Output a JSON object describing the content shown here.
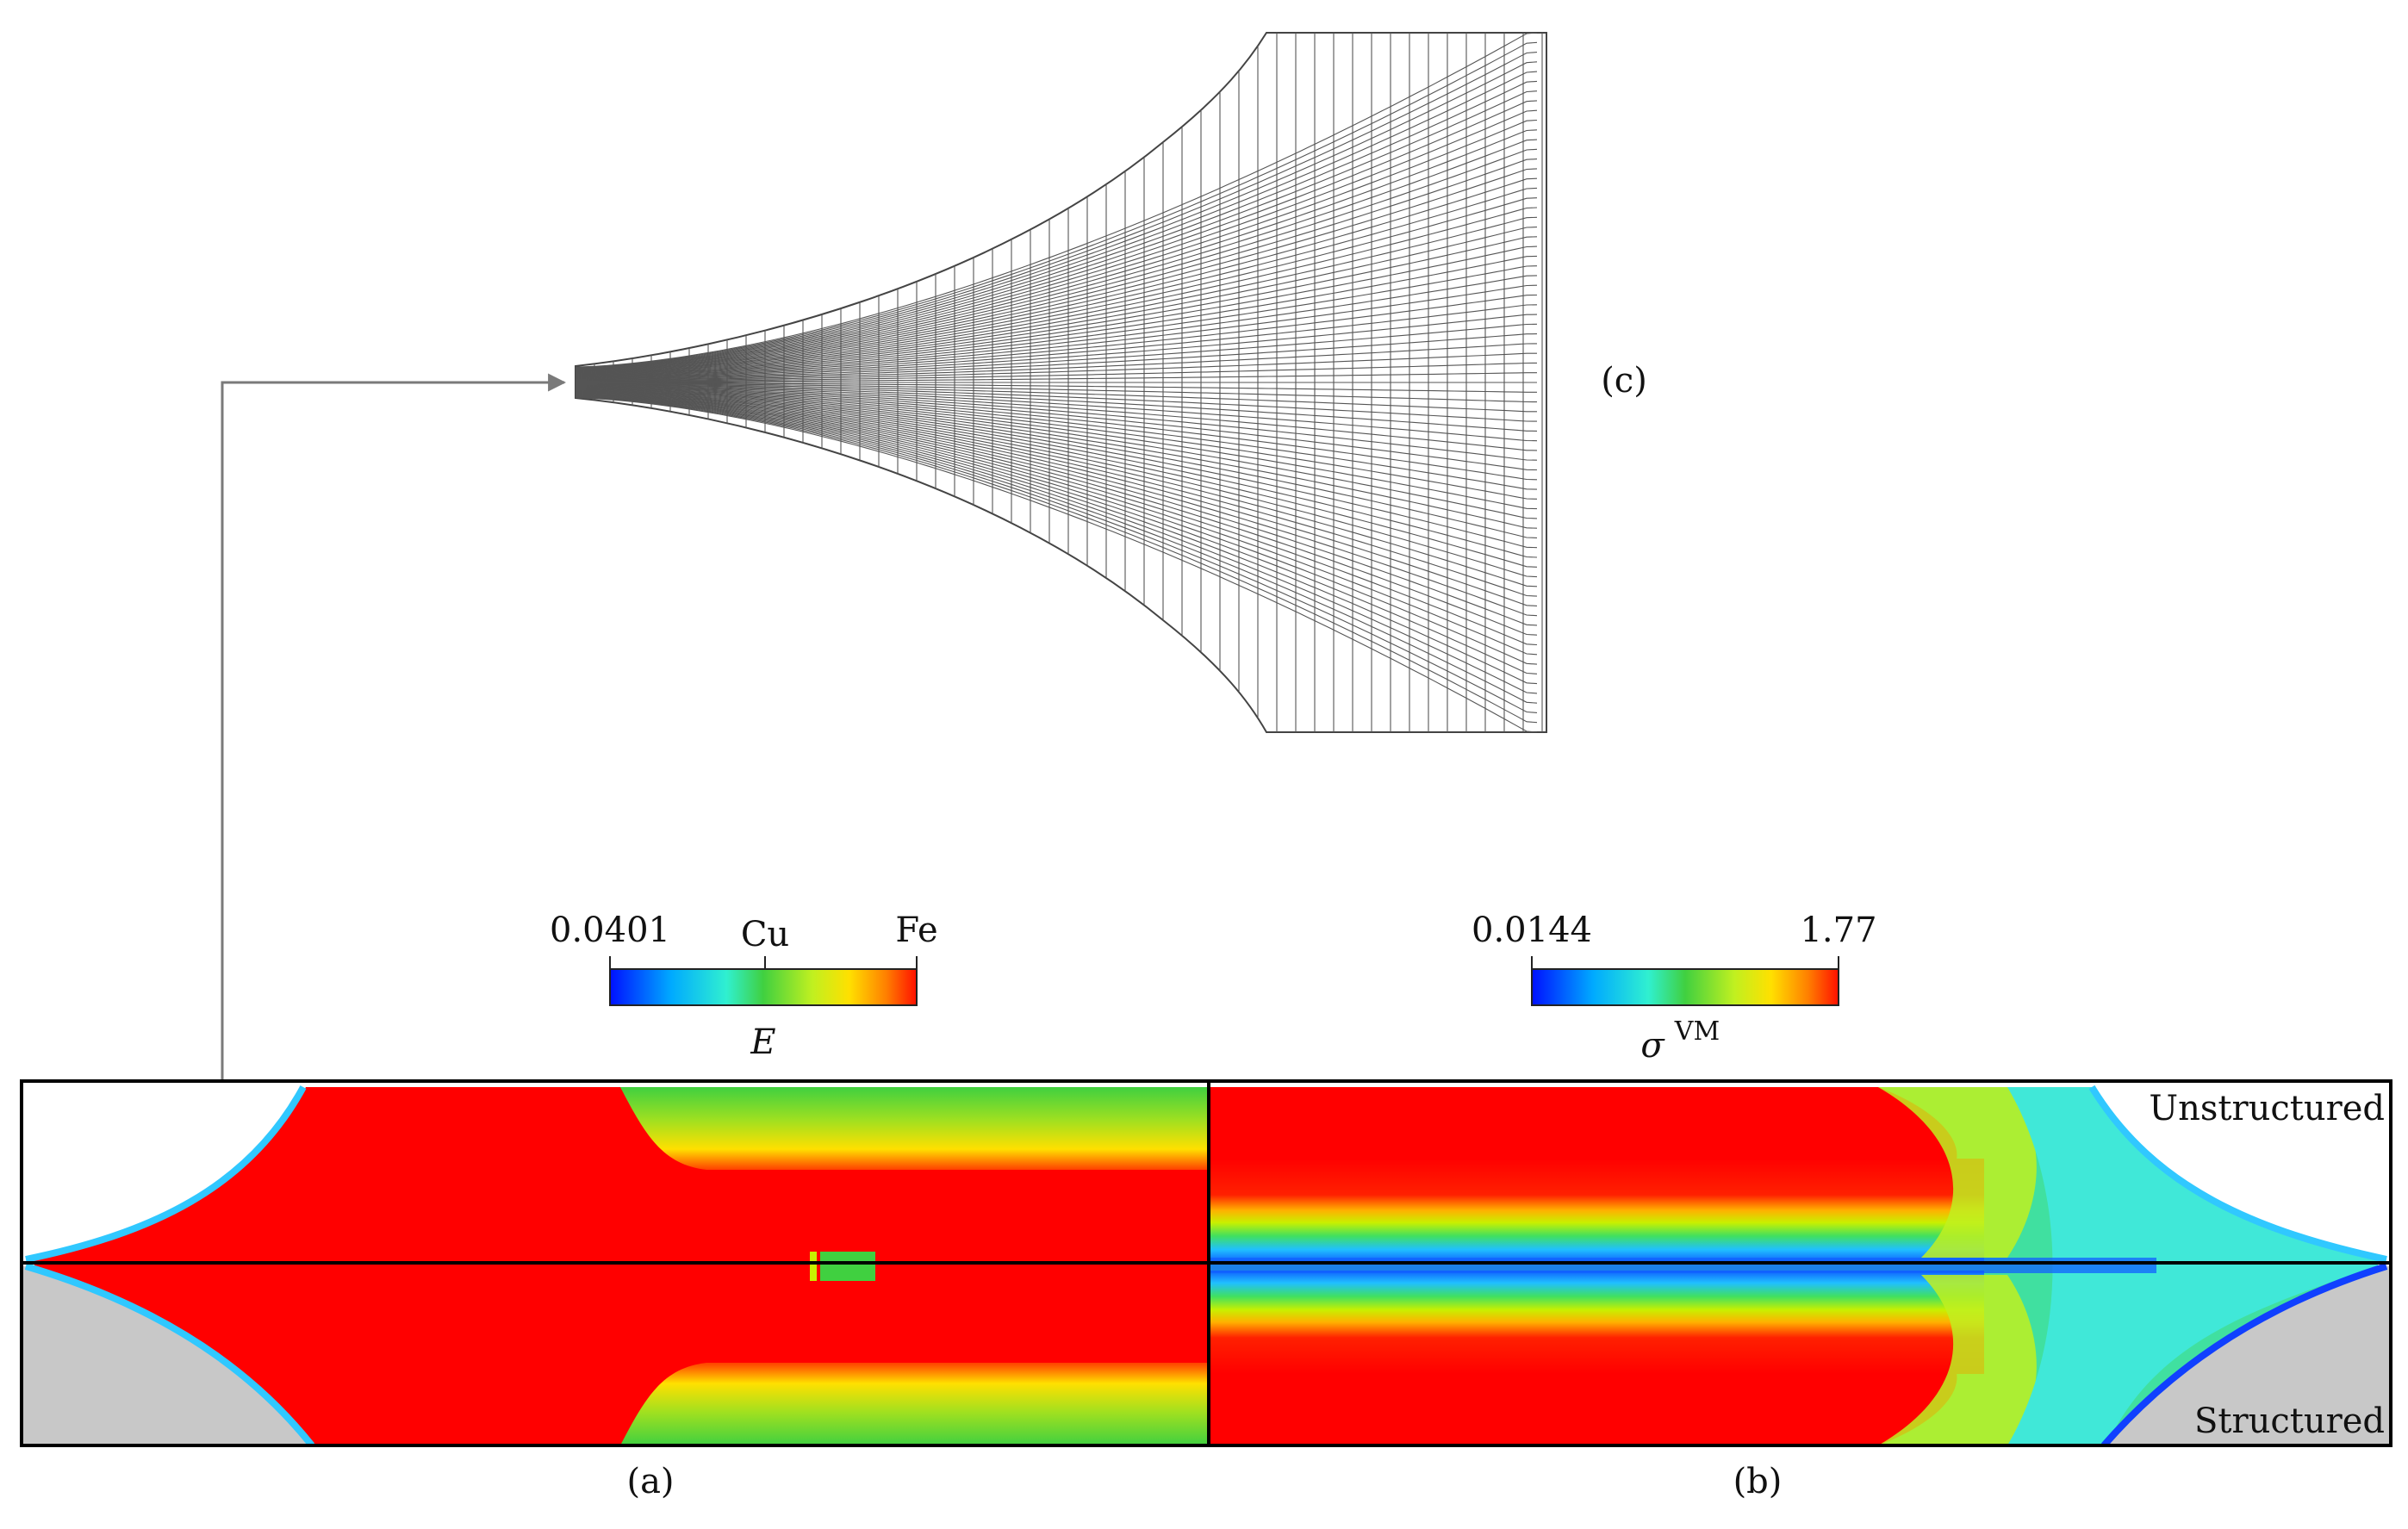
{
  "panels": {
    "a_label": "(a)",
    "b_label": "(b)",
    "c_label": "(c)",
    "unstructured_label": "Unstructured",
    "structured_label": "Structured"
  },
  "colorbar_E": {
    "min_label": "0.0401",
    "mid_label": "Cu",
    "max_label": "Fe",
    "symbol": "E"
  },
  "colorbar_vm": {
    "min_label": "0.0144",
    "max_label": "1.77",
    "symbol": "σ",
    "superscript": "VM"
  },
  "colors": {
    "red": "#ff0000",
    "green": "#40d040",
    "yellow": "#ffe000",
    "cyan": "#30e0ff",
    "blue": "#0040ff",
    "gray": "#c8c8c8",
    "mesh": "#555555",
    "arrow": "#7a7a7a"
  }
}
